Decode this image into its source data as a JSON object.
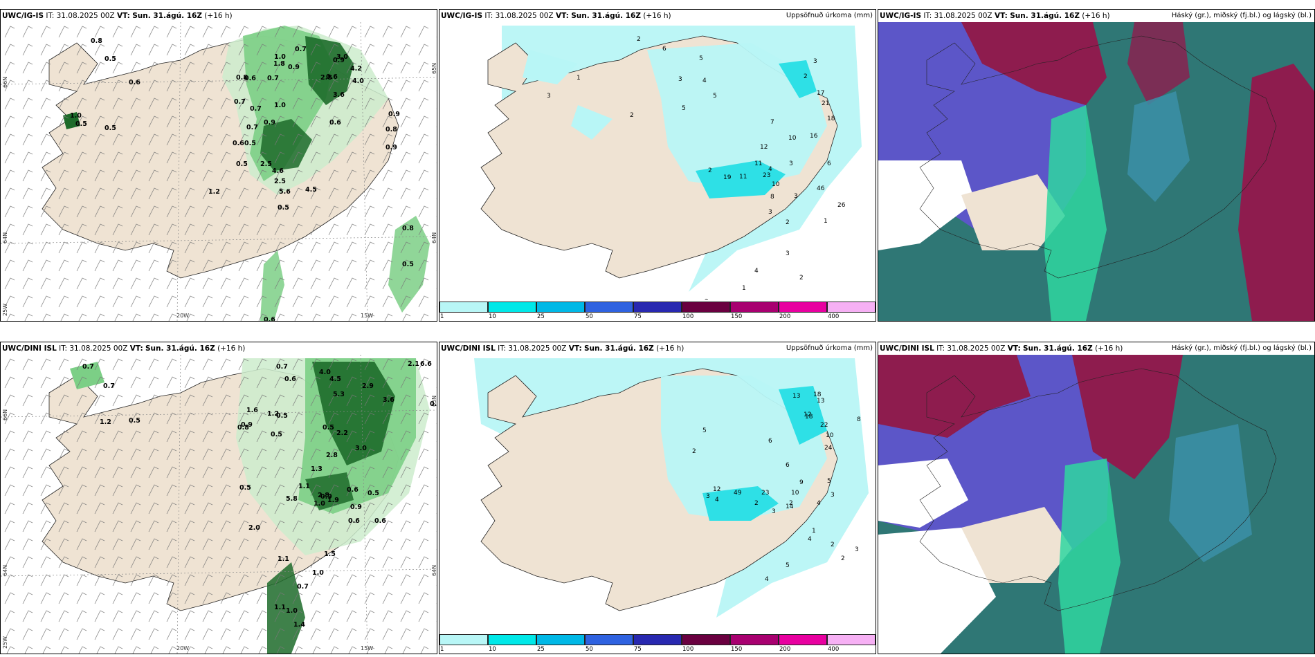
{
  "colors": {
    "land": "#efe3d3",
    "ocean": "#ffffff",
    "green_light": "#cdeccc",
    "green_mid": "#7ccf86",
    "green_dark": "#1d6b2a",
    "cyan_light": "#b8f6f6",
    "cyan_mid": "#2ee0e6",
    "cloud_blue": "#5c56c8",
    "cloud_maroon": "#8e1c4e",
    "cloud_teal": "#2f7775",
    "cloud_green": "#2fd6a0"
  },
  "panels": [
    {
      "title": "UWC/IG-IS",
      "it_label": "IT:",
      "it_value": "31.08.2025 00Z",
      "vt_label": "VT:",
      "vt_value": "Sun. 31.ágú. 16Z",
      "lead": "(+16 h)",
      "right_title": ""
    },
    {
      "title": "UWC/IG-IS",
      "it_label": "IT:",
      "it_value": "31.08.2025 00Z",
      "vt_label": "VT:",
      "vt_value": "Sun. 31.ágú. 16Z",
      "lead": "(+16 h)",
      "right_title": "Uppsöfnuð úrkoma (mm)"
    },
    {
      "title": "UWC/IG-IS",
      "it_label": "IT:",
      "it_value": "31.08.2025 00Z",
      "vt_label": "VT:",
      "vt_value": "Sun. 31.ágú. 16Z",
      "lead": "(+16 h)",
      "right_title": "Háský (gr.), miðský (fj.bl.) og lágský (bl.)"
    },
    {
      "title": "UWC/DINI ISL",
      "it_label": "IT:",
      "it_value": "31.08.2025 00Z",
      "vt_label": "VT:",
      "vt_value": "Sun. 31.ágú. 16Z",
      "lead": "(+16 h)",
      "right_title": ""
    },
    {
      "title": "UWC/DINI ISL",
      "it_label": "IT:",
      "it_value": "31.08.2025 00Z",
      "vt_label": "VT:",
      "vt_value": "Sun. 31.ágú. 16Z",
      "lead": "(+16 h)",
      "right_title": "Uppsöfnuð úrkoma (mm)"
    },
    {
      "title": "UWC/DINI ISL",
      "it_label": "IT:",
      "it_value": "31.08.2025 00Z",
      "vt_label": "VT:",
      "vt_value": "Sun. 31.ágú. 16Z",
      "lead": "(+16 h)",
      "right_title": "Háský (gr.), miðský (fj.bl.) og lágský (bl.)"
    }
  ],
  "axes": {
    "lon_left": "20W",
    "lon_right": "15W",
    "lat_top": "66N",
    "lat_bottom": "64N",
    "lon_far": "25W",
    "lat_mid": "65N"
  },
  "colorbar": {
    "ticks": [
      "1",
      "10",
      "25",
      "50",
      "75",
      "100",
      "150",
      "200",
      "400"
    ],
    "colors": [
      "#b8f6f6",
      "#00e8e8",
      "#00b8e6",
      "#2f62e0",
      "#2828b0",
      "#6a0040",
      "#a80070",
      "#e800a0",
      "#f6b0f4"
    ]
  },
  "ig_precip_labels": [
    "0.8",
    "0.5",
    "0.6",
    "1.0",
    "0.5",
    "0.8",
    "0.6",
    "0.7",
    "0.9",
    "1.0",
    "0.6",
    "0.7",
    "0.9",
    "0.5",
    "0.7",
    "2.5",
    "4.2",
    "3.6",
    "3.0",
    "2.8",
    "4.0",
    "1.8",
    "1.0",
    "0.6",
    "0.5",
    "0.7",
    "0.9",
    "0.7",
    "0.6",
    "0.5",
    "2.5",
    "4.6",
    "5.6",
    "4.5",
    "1.2",
    "0.5",
    "0.9",
    "0.8",
    "0.9",
    "0.8",
    "0.5",
    "0.6"
  ],
  "dini_precip_labels": [
    "0.7",
    "0.7",
    "0.5",
    "1.2",
    "0.7",
    "0.6",
    "4.0",
    "4.5",
    "5.3",
    "2.9",
    "3.6",
    "2.1",
    "6.6",
    "0.9",
    "1.6",
    "1.2",
    "0.5",
    "0.9",
    "0.8",
    "0.5",
    "0.5",
    "2.2",
    "3.0",
    "2.8",
    "1.3",
    "1.1",
    "0.9",
    "1.0",
    "0.6",
    "0.5",
    "5.8",
    "2.8",
    "1.9",
    "0.5",
    "0.9",
    "0.6",
    "0.6",
    "2.0",
    "1.1",
    "1.5",
    "1.0",
    "0.7",
    "1.1",
    "1.0",
    "1.4"
  ],
  "ig_accum_labels": [
    "2",
    "6",
    "5",
    "3",
    "4",
    "1",
    "3",
    "2",
    "5",
    "5",
    "3",
    "2",
    "17",
    "21",
    "18",
    "16",
    "10",
    "7",
    "4",
    "12",
    "6",
    "3",
    "11",
    "11",
    "2",
    "19",
    "23",
    "46",
    "26",
    "10",
    "8",
    "3",
    "3",
    "2",
    "1",
    "3",
    "2",
    "4",
    "1",
    "2",
    "3"
  ],
  "dini_accum_labels": [
    "13",
    "18",
    "12",
    "2",
    "3",
    "4",
    "6",
    "5",
    "3",
    "4",
    "14",
    "13",
    "18",
    "22",
    "10",
    "24",
    "8",
    "5",
    "2",
    "12",
    "49",
    "23",
    "10",
    "9",
    "6",
    "3",
    "2",
    "1",
    "4",
    "2",
    "2",
    "3",
    "5",
    "4"
  ]
}
